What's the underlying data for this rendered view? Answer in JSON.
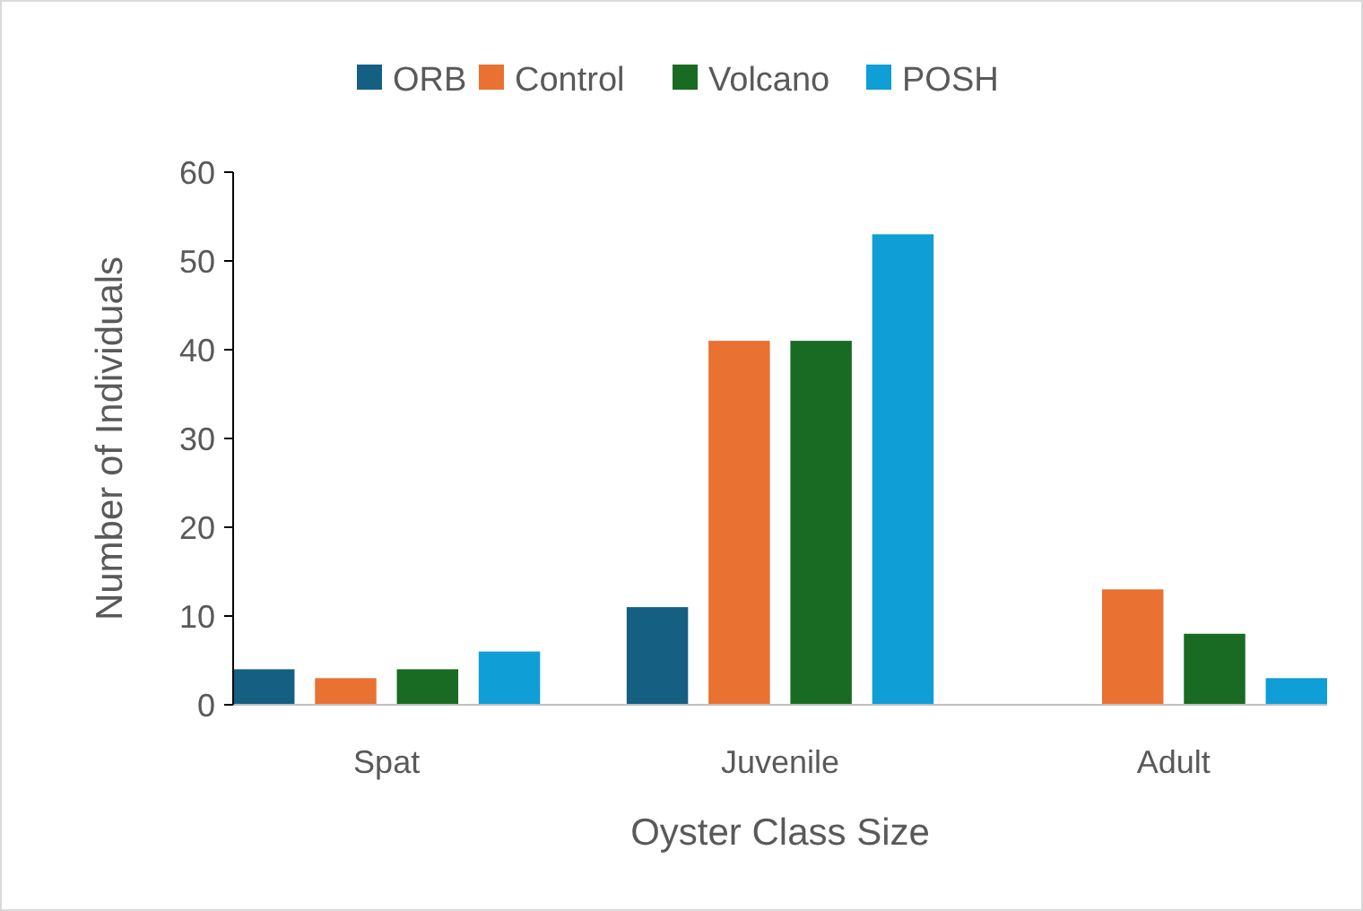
{
  "chart_data": {
    "type": "bar",
    "xlabel": "Oyster Class Size",
    "ylabel": "Number of Individuals",
    "categories": [
      "Spat",
      "Juvenile",
      "Adult"
    ],
    "series": [
      {
        "name": "ORB",
        "color": "#156082",
        "values": [
          4,
          11,
          0
        ]
      },
      {
        "name": "Control",
        "color": "#e97132",
        "values": [
          3,
          41,
          13
        ]
      },
      {
        "name": "Volcano",
        "color": "#196b24",
        "values": [
          4,
          41,
          8
        ]
      },
      {
        "name": "POSH",
        "color": "#0f9ed5",
        "values": [
          6,
          53,
          3
        ]
      }
    ],
    "ylim": [
      0,
      60
    ],
    "yticks": [
      0,
      10,
      20,
      30,
      40,
      50,
      60
    ],
    "grid": false,
    "legend": "top"
  }
}
